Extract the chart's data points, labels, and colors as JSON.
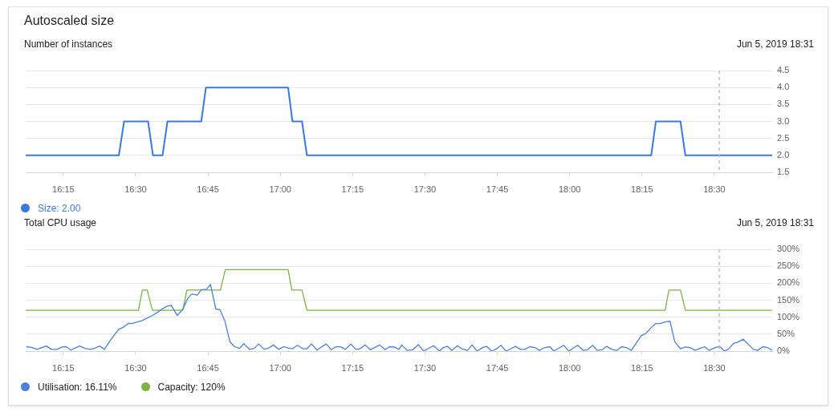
{
  "chart_data": [
    {
      "type": "line",
      "title": "Autoscaled size",
      "subtitle": "Number of instances",
      "annotations": [
        "Jun 5, 2019 18:31"
      ],
      "xlim": [
        16.12,
        18.7
      ],
      "xticks": [
        {
          "value": 16.25,
          "label": "16:15"
        },
        {
          "value": 16.5,
          "label": "16:30"
        },
        {
          "value": 16.75,
          "label": "16:45"
        },
        {
          "value": 17,
          "label": "17:00"
        },
        {
          "value": 17.25,
          "label": "17:15"
        },
        {
          "value": 17.5,
          "label": "17:30"
        },
        {
          "value": 17.75,
          "label": "17:45"
        },
        {
          "value": 18,
          "label": "18:00"
        },
        {
          "value": 18.25,
          "label": "18:15"
        },
        {
          "value": 18.5,
          "label": "18:30"
        }
      ],
      "ylim": [
        1.5,
        4.5
      ],
      "yticks": [
        1.5,
        {
          "value": 2,
          "label": "2.0"
        },
        2.5,
        {
          "value": 3,
          "label": "3.0"
        },
        3.5,
        {
          "value": 4,
          "label": "4.0"
        },
        4.5
      ],
      "grid": "y",
      "legend": "bottom",
      "ref_lines": [
        {
          "axis": "x",
          "value": 18.517,
          "color": "#bdbdbd",
          "line_style": "dashed"
        }
      ],
      "series": [
        {
          "name": "Size: 2.00",
          "color": "#3b78e7",
          "x": [
            16.12,
            16.442,
            16.46,
            16.543,
            16.56,
            16.593,
            16.61,
            16.727,
            16.743,
            17.027,
            17.042,
            17.075,
            17.092,
            18.282,
            18.298,
            18.383,
            18.4,
            18.7
          ],
          "values": [
            2,
            2,
            3,
            3,
            2,
            2,
            3,
            3,
            4,
            4,
            3,
            3,
            2,
            2,
            3,
            3,
            2,
            2
          ]
        }
      ]
    },
    {
      "type": "line",
      "title": "Total CPU usage",
      "annotations": [
        "Jun 5, 2019 18:31"
      ],
      "xlim": [
        16.12,
        18.7
      ],
      "xticks": [
        {
          "value": 16.25,
          "label": "16:15"
        },
        {
          "value": 16.5,
          "label": "16:30"
        },
        {
          "value": 16.75,
          "label": "16:45"
        },
        {
          "value": 17,
          "label": "17:00"
        },
        {
          "value": 17.25,
          "label": "17:15"
        },
        {
          "value": 17.5,
          "label": "17:30"
        },
        {
          "value": 17.75,
          "label": "17:45"
        },
        {
          "value": 18,
          "label": "18:00"
        },
        {
          "value": 18.25,
          "label": "18:15"
        },
        {
          "value": 18.5,
          "label": "18:30"
        }
      ],
      "ylim": [
        0,
        300
      ],
      "yticks": [
        {
          "value": 0,
          "label": "0%"
        },
        {
          "value": 50,
          "label": "50%"
        },
        {
          "value": 100,
          "label": "100%"
        },
        {
          "value": 150,
          "label": "150%"
        },
        {
          "value": 200,
          "label": "200%"
        },
        {
          "value": 250,
          "label": "250%"
        },
        {
          "value": 300,
          "label": "300%"
        }
      ],
      "grid": "y",
      "legend": "bottom",
      "ref_lines": [
        {
          "axis": "x",
          "value": 18.517,
          "color": "#bdbdbd",
          "line_style": "dashed"
        }
      ],
      "series": [
        {
          "name": "Utilisation: 16.11%",
          "color": "#4a80e0",
          "x": [
            16.122,
            16.14,
            16.159,
            16.191,
            16.209,
            16.228,
            16.246,
            16.26,
            16.276,
            16.306,
            16.325,
            16.343,
            16.357,
            16.376,
            16.392,
            16.413,
            16.44,
            16.459,
            16.475,
            16.488,
            16.523,
            16.556,
            16.579,
            16.593,
            16.608,
            16.623,
            16.644,
            16.662,
            16.68,
            16.694,
            16.713,
            16.727,
            16.745,
            16.759,
            16.777,
            16.791,
            16.808,
            16.826,
            16.842,
            16.859,
            16.874,
            16.893,
            16.91,
            16.925,
            16.944,
            16.96,
            16.976,
            16.995,
            17.011,
            17.027,
            17.043,
            17.059,
            17.078,
            17.092,
            17.108,
            17.127,
            17.142,
            17.159,
            17.176,
            17.193,
            17.21,
            17.225,
            17.244,
            17.261,
            17.276,
            17.293,
            17.311,
            17.327,
            17.344,
            17.362,
            17.378,
            17.394,
            17.41,
            17.42,
            17.438,
            17.458,
            17.477,
            17.495,
            17.517,
            17.53,
            17.55,
            17.565,
            17.578,
            17.593,
            17.612,
            17.627,
            17.647,
            17.663,
            17.68,
            17.7,
            17.713,
            17.73,
            17.748,
            17.763,
            17.78,
            17.797,
            17.813,
            17.83,
            17.845,
            17.862,
            17.882,
            17.895,
            17.912,
            17.932,
            17.945,
            17.98,
            17.997,
            18.028,
            18.047,
            18.062,
            18.08,
            18.095,
            18.113,
            18.128,
            18.145,
            18.163,
            18.18,
            18.197,
            18.213,
            18.248,
            18.262,
            18.283,
            18.297,
            18.313,
            18.33,
            18.347,
            18.363,
            18.383,
            18.4,
            18.417,
            18.433,
            18.448,
            18.467,
            18.482,
            18.5,
            18.518,
            18.535,
            18.548,
            18.567,
            18.583,
            18.6,
            18.635,
            18.65,
            18.668,
            18.685,
            18.7
          ],
          "values": [
            13,
            11,
            5,
            15,
            5,
            5,
            12,
            13,
            3,
            15,
            8,
            5,
            8,
            15,
            5,
            32,
            63,
            71,
            82,
            81,
            90,
            104,
            116,
            125,
            132,
            135,
            105,
            122,
            155,
            168,
            165,
            181,
            182,
            196,
            124,
            122,
            90,
            27,
            13,
            8,
            22,
            5,
            8,
            21,
            5,
            9,
            18,
            5,
            13,
            9,
            7,
            17,
            7,
            7,
            21,
            3,
            12,
            21,
            4,
            13,
            12,
            5,
            21,
            5,
            7,
            18,
            4,
            11,
            18,
            4,
            13,
            12,
            5,
            18,
            2,
            4,
            19,
            0,
            10,
            16,
            0,
            11,
            14,
            2,
            16,
            7,
            2,
            18,
            0,
            11,
            14,
            0,
            7,
            17,
            0,
            7,
            14,
            5,
            5,
            13,
            10,
            2,
            10,
            13,
            0,
            17,
            0,
            17,
            2,
            4,
            17,
            2,
            4,
            14,
            5,
            2,
            13,
            10,
            2,
            46,
            51,
            70,
            81,
            81,
            86,
            88,
            28,
            7,
            12,
            10,
            2,
            7,
            13,
            2,
            9,
            14,
            0,
            5,
            23,
            27,
            35,
            5,
            2,
            13,
            10,
            2
          ]
        },
        {
          "name": "Capacity: 120%",
          "color": "#7cb342",
          "x": [
            16.12,
            16.51,
            16.523,
            16.54,
            16.558,
            16.663,
            16.677,
            16.793,
            16.81,
            17.027,
            17.04,
            17.075,
            17.092,
            18.33,
            18.343,
            18.383,
            18.4,
            18.7
          ],
          "values": [
            120,
            120,
            180,
            180,
            120,
            120,
            180,
            180,
            240,
            240,
            180,
            180,
            120,
            120,
            180,
            180,
            120,
            120
          ]
        }
      ]
    }
  ]
}
